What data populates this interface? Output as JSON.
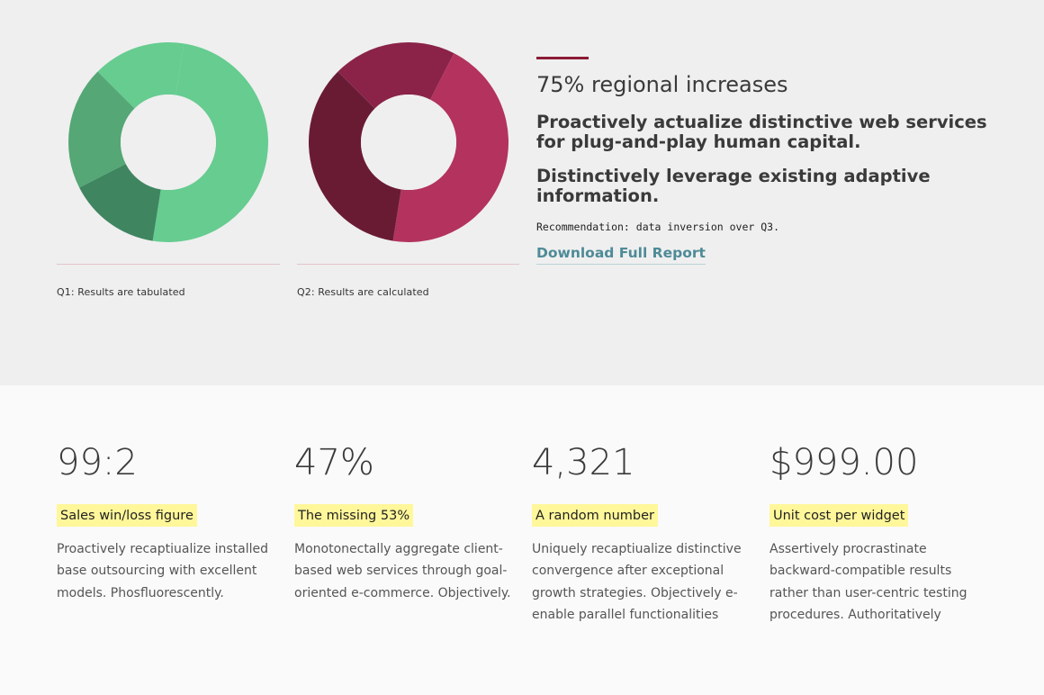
{
  "charts": [
    {
      "caption": "Q1: Results are tabulated",
      "segments": [
        {
          "value": 15,
          "color": "#66cc90"
        },
        {
          "value": 50,
          "color": "#66cc90"
        },
        {
          "value": 15,
          "color": "#3f8560"
        },
        {
          "value": 20,
          "color": "#55a775"
        }
      ]
    },
    {
      "caption": "Q2: Results are calculated",
      "segments": [
        {
          "value": 20,
          "color": "#8b2349"
        },
        {
          "value": 45,
          "color": "#b3335e"
        },
        {
          "value": 35,
          "color": "#6a1b34"
        }
      ]
    }
  ],
  "highlight": {
    "headline": "75% regional increases",
    "subhead_1": "Proactively actualize distinctive web services for plug-and-play human capital.",
    "subhead_2": "Distinctively leverage existing adaptive information.",
    "note": "Recommendation: data inversion over Q3.",
    "link_label": "Download Full Report",
    "accent_color": "#8b1c36"
  },
  "stats": [
    {
      "value": "99:2",
      "label": "Sales win/loss figure",
      "description": "Proactively recaptiualize installed base outsourcing with excellent models. Phosfluorescently."
    },
    {
      "value": "47%",
      "label": "The missing 53%",
      "description": "Monotonectally aggregate client-based web services through goal-oriented e-commerce. Objectively."
    },
    {
      "value": "4,321",
      "label": "A random number",
      "description": "Uniquely recaptiualize distinctive convergence after exceptional growth strategies. Objectively e-enable parallel functionalities rather"
    },
    {
      "value": "$999.00",
      "label": "Unit cost per widget",
      "description": "Assertively procrastinate backward-compatible results rather than user-centric testing procedures. Authoritatively reconceptualize"
    }
  ]
}
